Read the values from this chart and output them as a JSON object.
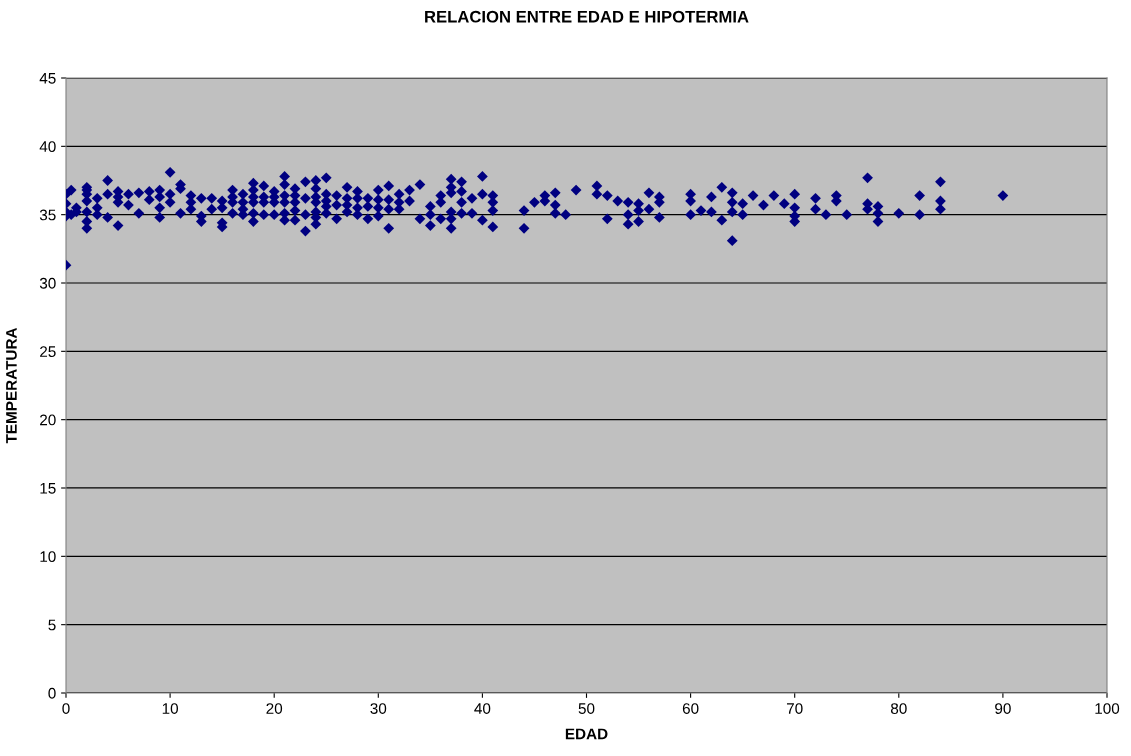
{
  "chart_data": {
    "type": "scatter",
    "title": "RELACION ENTRE EDAD E HIPOTERMIA",
    "xlabel": "EDAD",
    "ylabel": "TEMPERATURA",
    "xlim": [
      0,
      100
    ],
    "xticks": [
      0,
      10,
      20,
      30,
      40,
      50,
      60,
      70,
      80,
      90,
      100
    ],
    "ylim": [
      0,
      45
    ],
    "yticks": [
      0,
      5,
      10,
      15,
      20,
      25,
      30,
      35,
      40,
      45
    ],
    "grid": "y",
    "marker": "diamond",
    "series": [
      {
        "color": "#000080",
        "x": [
          0,
          0,
          0,
          0,
          0,
          0.5,
          0.5,
          1,
          1,
          2,
          2,
          2,
          2,
          2,
          2,
          2,
          3,
          3,
          3,
          4,
          4,
          4,
          5,
          5,
          5,
          5,
          6,
          6,
          7,
          7,
          8,
          8,
          9,
          9,
          9,
          9,
          10,
          10,
          10,
          11,
          11,
          11,
          12,
          12,
          12,
          13,
          13,
          13,
          14,
          14,
          15,
          15,
          15,
          15,
          16,
          16,
          16,
          16,
          17,
          17,
          17,
          17,
          18,
          18,
          18,
          18,
          18,
          18,
          19,
          19,
          19,
          19,
          20,
          20,
          20,
          20,
          21,
          21,
          21,
          21,
          21,
          21,
          22,
          22,
          22,
          22,
          22,
          23,
          23,
          23,
          23,
          24,
          24,
          24,
          24,
          24,
          24,
          24,
          25,
          25,
          25,
          25,
          25,
          26,
          26,
          26,
          27,
          27,
          27,
          27,
          28,
          28,
          28,
          28,
          29,
          29,
          29,
          30,
          30,
          30,
          30,
          31,
          31,
          31,
          31,
          32,
          32,
          32,
          33,
          33,
          34,
          34,
          35,
          35,
          35,
          36,
          36,
          36,
          37,
          37,
          37,
          37,
          37,
          37,
          38,
          38,
          38,
          38,
          39,
          39,
          40,
          40,
          40,
          41,
          41,
          41,
          41,
          44,
          44,
          45,
          46,
          46,
          47,
          47,
          47,
          48,
          49,
          51,
          51,
          52,
          52,
          53,
          54,
          54,
          54,
          55,
          55,
          55,
          56,
          56,
          57,
          57,
          57,
          60,
          60,
          60,
          61,
          62,
          62,
          63,
          63,
          64,
          64,
          64,
          64,
          65,
          65,
          66,
          67,
          68,
          69,
          70,
          70,
          70,
          70,
          72,
          72,
          73,
          74,
          74,
          75,
          77,
          77,
          77,
          78,
          78,
          78,
          80,
          82,
          82,
          84,
          84,
          84,
          90
        ],
        "values": [
          31.3,
          35.2,
          35.8,
          36.5,
          34.9,
          36.8,
          35.0,
          35.2,
          35.5,
          37.0,
          36.5,
          36.0,
          35.2,
          34.5,
          34.0,
          36.8,
          35.5,
          36.2,
          35.0,
          37.5,
          36.5,
          34.8,
          36.7,
          36.3,
          35.9,
          34.2,
          36.5,
          35.7,
          36.6,
          35.1,
          36.7,
          36.1,
          36.8,
          36.3,
          35.5,
          34.8,
          38.1,
          36.5,
          35.9,
          37.2,
          36.9,
          35.1,
          36.4,
          35.9,
          35.4,
          36.2,
          34.9,
          34.5,
          36.2,
          35.4,
          36.0,
          35.5,
          34.4,
          34.1,
          36.8,
          36.3,
          35.9,
          35.1,
          36.5,
          35.9,
          35.4,
          35.0,
          37.3,
          36.8,
          36.3,
          35.9,
          35.1,
          34.5,
          37.1,
          36.3,
          35.9,
          35.0,
          36.7,
          36.3,
          35.9,
          35.0,
          37.8,
          37.2,
          36.4,
          35.9,
          35.1,
          34.6,
          36.9,
          36.4,
          35.9,
          35.3,
          34.6,
          37.4,
          36.2,
          35.0,
          33.8,
          37.5,
          36.9,
          36.3,
          35.9,
          35.2,
          34.8,
          34.3,
          37.7,
          36.5,
          36.0,
          35.6,
          35.1,
          36.4,
          35.7,
          34.7,
          37.0,
          36.2,
          35.7,
          35.2,
          36.7,
          36.2,
          35.5,
          35.0,
          36.2,
          35.6,
          34.7,
          36.8,
          36.1,
          35.5,
          34.9,
          37.1,
          36.1,
          35.4,
          34.0,
          36.5,
          35.9,
          35.4,
          36.8,
          36.0,
          37.2,
          34.7,
          35.6,
          35.0,
          34.2,
          36.4,
          35.9,
          34.7,
          37.6,
          37.0,
          36.6,
          35.2,
          34.7,
          34.0,
          37.4,
          36.7,
          35.9,
          35.1,
          36.2,
          35.1,
          37.8,
          36.5,
          34.6,
          36.4,
          35.9,
          35.3,
          34.1,
          35.3,
          34.0,
          35.9,
          36.4,
          36.0,
          36.6,
          35.7,
          35.1,
          35.0,
          36.8,
          37.1,
          36.5,
          36.4,
          34.7,
          36.0,
          35.9,
          35.0,
          34.3,
          35.8,
          35.3,
          34.5,
          36.6,
          35.4,
          36.3,
          35.9,
          34.8,
          36.5,
          36.0,
          35.0,
          35.3,
          36.3,
          35.2,
          37.0,
          34.6,
          36.6,
          35.9,
          35.2,
          33.1,
          35.8,
          35.0,
          36.4,
          35.7,
          36.4,
          35.8,
          36.5,
          35.5,
          34.9,
          34.5,
          36.2,
          35.4,
          35.0,
          36.4,
          36.0,
          35.0,
          37.7,
          35.8,
          35.4,
          35.6,
          34.5,
          35.1,
          35.1,
          36.4,
          35.0,
          37.4,
          36.0,
          35.4,
          36.4
        ]
      }
    ]
  }
}
